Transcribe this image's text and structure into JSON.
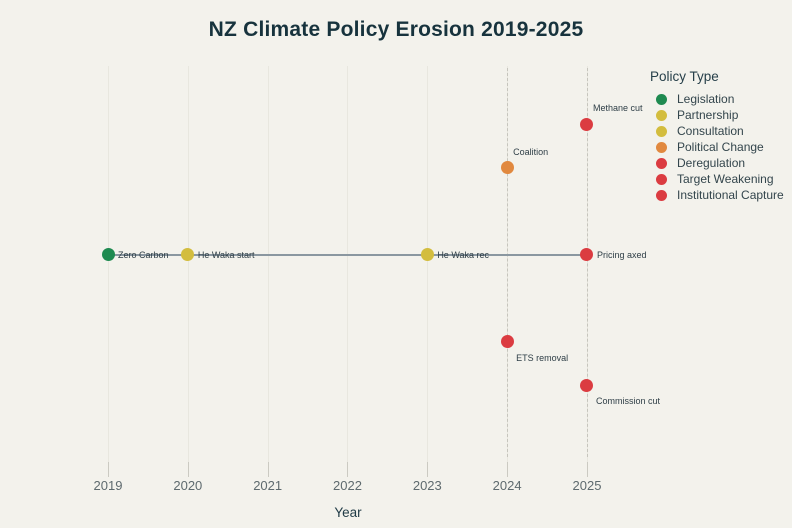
{
  "title": "NZ Climate Policy Erosion 2019-2025",
  "chart_data": {
    "type": "scatter",
    "title": "NZ Climate Policy Erosion 2019-2025",
    "xlabel": "Year",
    "ylabel": "",
    "x_ticks": [
      "2019",
      "2020",
      "2021",
      "2022",
      "2023",
      "2024",
      "2025"
    ],
    "x_range": [
      2019,
      2025
    ],
    "y_axis_visible": false,
    "grid": "faint vertical gridlines at each year",
    "dashed_guide_years": [
      2024,
      2025
    ],
    "baseline": {
      "from_year": 2019,
      "to_year": 2025,
      "y": 0
    },
    "legend": {
      "title": "Policy Type",
      "position": "right",
      "entries": [
        {
          "label": "Legislation",
          "color": "#1e8a50"
        },
        {
          "label": "Partnership",
          "color": "#d3bd3e"
        },
        {
          "label": "Consultation",
          "color": "#d3bd3e"
        },
        {
          "label": "Political Change",
          "color": "#e1893f"
        },
        {
          "label": "Deregulation",
          "color": "#db3c41"
        },
        {
          "label": "Target Weakening",
          "color": "#db3c41"
        },
        {
          "label": "Institutional Capture",
          "color": "#db3c41"
        }
      ]
    },
    "points": [
      {
        "label": "Zero Carbon",
        "year": 2019,
        "y": 0,
        "type": "Legislation",
        "color": "#1e8a50",
        "label_pos": "right"
      },
      {
        "label": "He Waka start",
        "year": 2020,
        "y": 0,
        "type": "Partnership",
        "color": "#d3bd3e",
        "label_pos": "right"
      },
      {
        "label": "He Waka rec",
        "year": 2023,
        "y": 0,
        "type": "Consultation",
        "color": "#d3bd3e",
        "label_pos": "right"
      },
      {
        "label": "Coalition",
        "year": 2024,
        "y": 2,
        "type": "Political Change",
        "color": "#e1893f",
        "label_pos": "above-right"
      },
      {
        "label": "Methane cut",
        "year": 2025,
        "y": 3,
        "type": "Target Weakening",
        "color": "#db3c41",
        "label_pos": "above-right"
      },
      {
        "label": "Pricing axed",
        "year": 2025,
        "y": 0,
        "type": "Deregulation",
        "color": "#db3c41",
        "label_pos": "right"
      },
      {
        "label": "ETS removal",
        "year": 2024,
        "y": -2,
        "type": "Deregulation",
        "color": "#db3c41",
        "label_pos": "below-right"
      },
      {
        "label": "Commission cut",
        "year": 2025,
        "y": -3,
        "type": "Institutional Capture",
        "color": "#db3c41",
        "label_pos": "below-right"
      }
    ]
  },
  "colors": {
    "background": "#f3f2ec",
    "title_text": "#17333d",
    "axis_tick_text": "#5e6a6e",
    "axis_label_text": "#1f3a45",
    "annotation_text": "#2e3e46",
    "baseline": "#8a97a0",
    "gridline": "#e8e7df",
    "dashed_guide": "#c6c5bd"
  }
}
